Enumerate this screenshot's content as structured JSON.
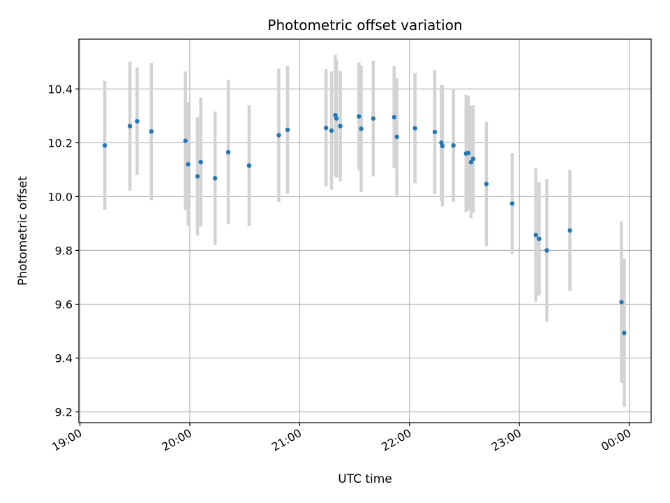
{
  "chart_data": {
    "type": "scatter",
    "title": "Photometric offset variation",
    "xlabel": "UTC time",
    "ylabel": "Photometric offset",
    "x_unit": "hours UTC (24 = 00:00 next day)",
    "xlim": [
      18.99,
      24.2
    ],
    "ylim": [
      9.16,
      10.585
    ],
    "x_ticks": [
      {
        "value": 19,
        "label": "19:00"
      },
      {
        "value": 20,
        "label": "20:00"
      },
      {
        "value": 21,
        "label": "21:00"
      },
      {
        "value": 22,
        "label": "22:00"
      },
      {
        "value": 23,
        "label": "23:00"
      },
      {
        "value": 24,
        "label": "00:00"
      }
    ],
    "y_ticks": [
      {
        "value": 9.2,
        "label": "9.2"
      },
      {
        "value": 9.4,
        "label": "9.4"
      },
      {
        "value": 9.6,
        "label": "9.6"
      },
      {
        "value": 9.8,
        "label": "9.8"
      },
      {
        "value": 10.0,
        "label": "10.0"
      },
      {
        "value": 10.2,
        "label": "10.2"
      },
      {
        "value": 10.4,
        "label": "10.4"
      }
    ],
    "grid": true,
    "colors": {
      "point": "#1f77b4",
      "errorbar": "#d3d3d3",
      "grid": "#b0b0b0"
    },
    "points": [
      {
        "x": 19.226,
        "y": 10.19,
        "err": 0.24
      },
      {
        "x": 19.455,
        "y": 10.262,
        "err": 0.24
      },
      {
        "x": 19.52,
        "y": 10.28,
        "err": 0.2
      },
      {
        "x": 19.65,
        "y": 10.242,
        "err": 0.255
      },
      {
        "x": 19.96,
        "y": 10.207,
        "err": 0.258
      },
      {
        "x": 19.985,
        "y": 10.12,
        "err": 0.23
      },
      {
        "x": 20.07,
        "y": 10.075,
        "err": 0.22
      },
      {
        "x": 20.1,
        "y": 10.128,
        "err": 0.24
      },
      {
        "x": 20.23,
        "y": 10.068,
        "err": 0.248
      },
      {
        "x": 20.35,
        "y": 10.165,
        "err": 0.268
      },
      {
        "x": 20.54,
        "y": 10.115,
        "err": 0.225
      },
      {
        "x": 20.81,
        "y": 10.228,
        "err": 0.248
      },
      {
        "x": 20.89,
        "y": 10.248,
        "err": 0.238
      },
      {
        "x": 21.24,
        "y": 10.255,
        "err": 0.218
      },
      {
        "x": 21.29,
        "y": 10.245,
        "err": 0.22
      },
      {
        "x": 21.325,
        "y": 10.302,
        "err": 0.225
      },
      {
        "x": 21.335,
        "y": 10.29,
        "err": 0.22
      },
      {
        "x": 21.37,
        "y": 10.262,
        "err": 0.205
      },
      {
        "x": 21.54,
        "y": 10.298,
        "err": 0.2
      },
      {
        "x": 21.56,
        "y": 10.252,
        "err": 0.235
      },
      {
        "x": 21.67,
        "y": 10.29,
        "err": 0.215
      },
      {
        "x": 21.86,
        "y": 10.295,
        "err": 0.19
      },
      {
        "x": 21.885,
        "y": 10.222,
        "err": 0.218
      },
      {
        "x": 22.05,
        "y": 10.254,
        "err": 0.205
      },
      {
        "x": 22.23,
        "y": 10.24,
        "err": 0.23
      },
      {
        "x": 22.29,
        "y": 10.2,
        "err": 0.215
      },
      {
        "x": 22.3,
        "y": 10.188,
        "err": 0.225
      },
      {
        "x": 22.4,
        "y": 10.19,
        "err": 0.21
      },
      {
        "x": 22.515,
        "y": 10.16,
        "err": 0.218
      },
      {
        "x": 22.535,
        "y": 10.162,
        "err": 0.212
      },
      {
        "x": 22.56,
        "y": 10.128,
        "err": 0.208
      },
      {
        "x": 22.58,
        "y": 10.14,
        "err": 0.2
      },
      {
        "x": 22.7,
        "y": 10.047,
        "err": 0.23
      },
      {
        "x": 22.935,
        "y": 9.974,
        "err": 0.188
      },
      {
        "x": 23.15,
        "y": 9.857,
        "err": 0.248
      },
      {
        "x": 23.18,
        "y": 9.843,
        "err": 0.21
      },
      {
        "x": 23.25,
        "y": 9.8,
        "err": 0.265
      },
      {
        "x": 23.46,
        "y": 9.874,
        "err": 0.225
      },
      {
        "x": 23.93,
        "y": 9.608,
        "err": 0.3
      },
      {
        "x": 23.955,
        "y": 9.493,
        "err": 0.275
      }
    ]
  }
}
